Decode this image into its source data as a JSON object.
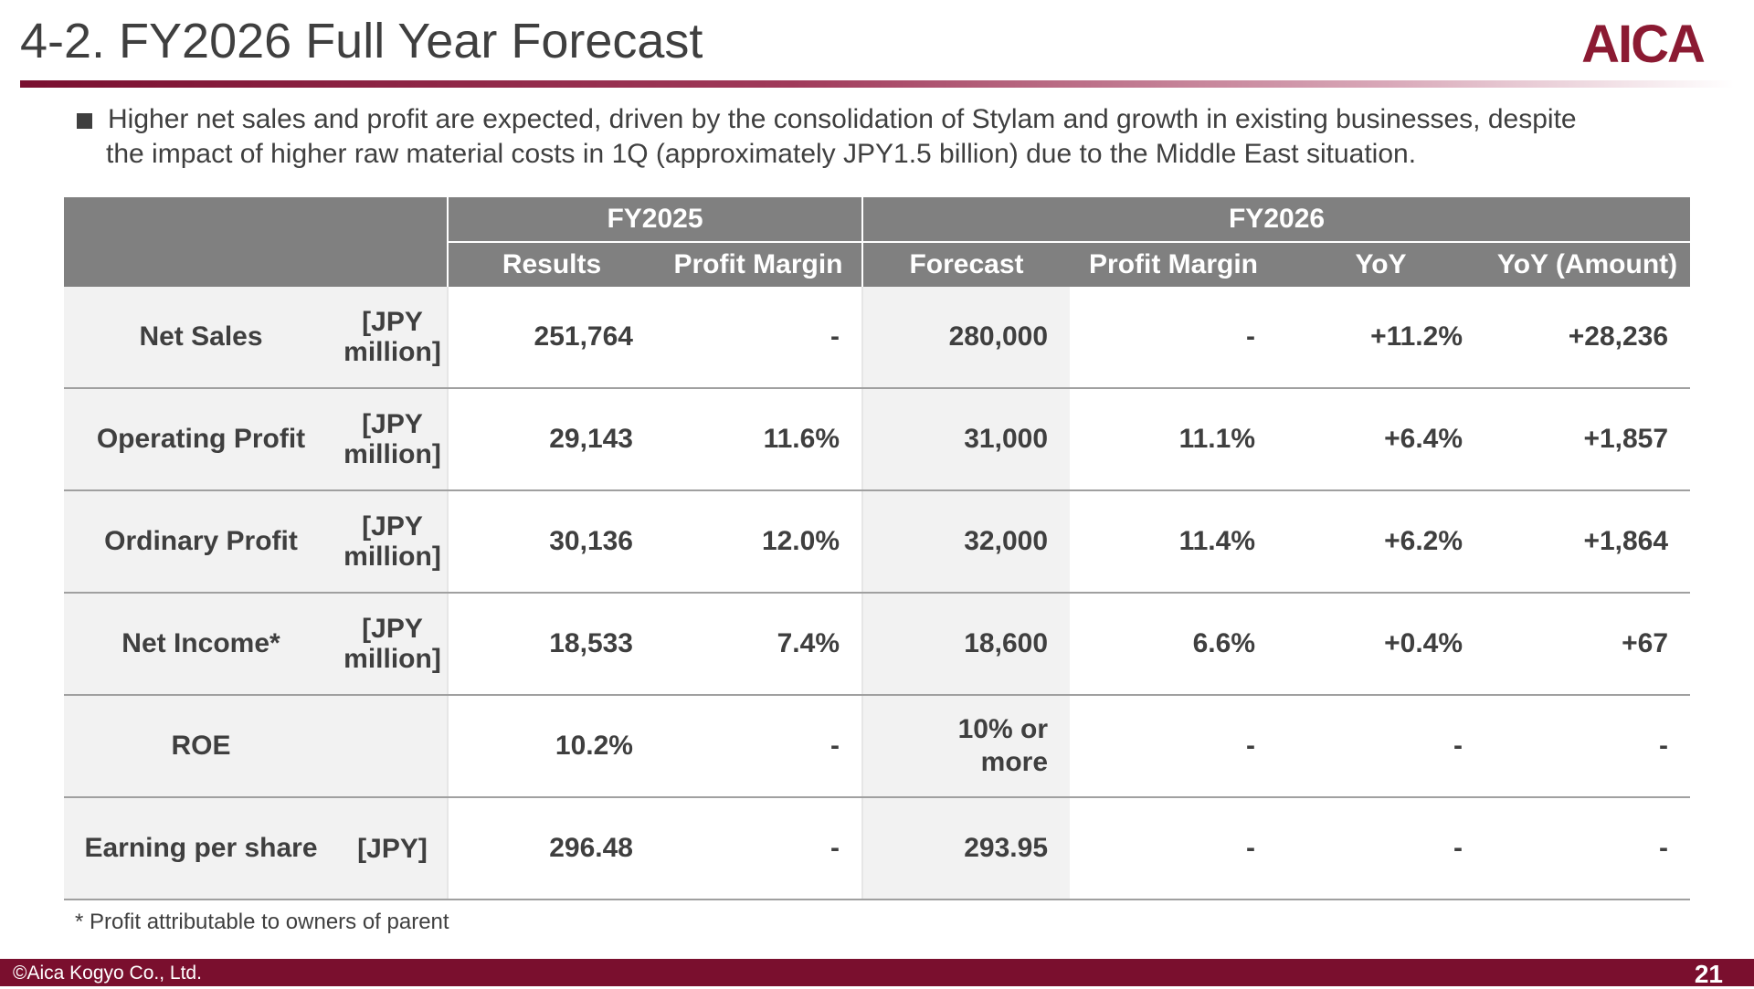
{
  "header": {
    "title": "4-2. FY2026 Full Year Forecast",
    "logo_text": "AICA",
    "logo_color": "#8b1a32",
    "accent_color": "#7a0f2e"
  },
  "bullet": {
    "icon": "square-bullet-icon",
    "line1": "Higher net sales and profit are expected, driven by the consolidation of Stylam and growth in existing businesses, despite",
    "line2": "the impact of higher raw material costs in 1Q (approximately JPY1.5 billion) due to the Middle East situation."
  },
  "table": {
    "groups": {
      "fy2025": "FY2025",
      "fy2026": "FY2026"
    },
    "columns": {
      "results": "Results",
      "margin_2025": "Profit Margin",
      "forecast": "Forecast",
      "margin_2026": "Profit Margin",
      "yoy": "YoY",
      "yoy_amount": "YoY (Amount)"
    },
    "rows": [
      {
        "label": "Net Sales",
        "unit_l1": "[JPY",
        "unit_l2": "million]",
        "results": "251,764",
        "margin_2025": "-",
        "forecast": "280,000",
        "margin_2026": "-",
        "yoy": "+11.2%",
        "yoy_amount": "+28,236"
      },
      {
        "label": "Operating Profit",
        "unit_l1": "[JPY",
        "unit_l2": "million]",
        "results": "29,143",
        "margin_2025": "11.6%",
        "forecast": "31,000",
        "margin_2026": "11.1%",
        "yoy": "+6.4%",
        "yoy_amount": "+1,857"
      },
      {
        "label": "Ordinary Profit",
        "unit_l1": "[JPY",
        "unit_l2": "million]",
        "results": "30,136",
        "margin_2025": "12.0%",
        "forecast": "32,000",
        "margin_2026": "11.4%",
        "yoy": "+6.2%",
        "yoy_amount": "+1,864"
      },
      {
        "label": "Net Income*",
        "unit_l1": "[JPY",
        "unit_l2": "million]",
        "results": "18,533",
        "margin_2025": "7.4%",
        "forecast": "18,600",
        "margin_2026": "6.6%",
        "yoy": "+0.4%",
        "yoy_amount": "+67"
      },
      {
        "label": "ROE",
        "unit_l1": "",
        "unit_l2": "",
        "results": "10.2%",
        "margin_2025": "-",
        "forecast_l1": "10% or",
        "forecast_l2": "more",
        "margin_2026": "-",
        "yoy": "-",
        "yoy_amount": "-"
      },
      {
        "label": "Earning per share",
        "unit_l1": "[JPY]",
        "unit_l2": "",
        "results": "296.48",
        "margin_2025": "-",
        "forecast": "293.95",
        "margin_2026": "-",
        "yoy": "-",
        "yoy_amount": "-"
      }
    ]
  },
  "footnote": "* Profit attributable to owners of parent",
  "footer": {
    "copyright": "©Aica Kogyo Co., Ltd.",
    "page": "21"
  }
}
